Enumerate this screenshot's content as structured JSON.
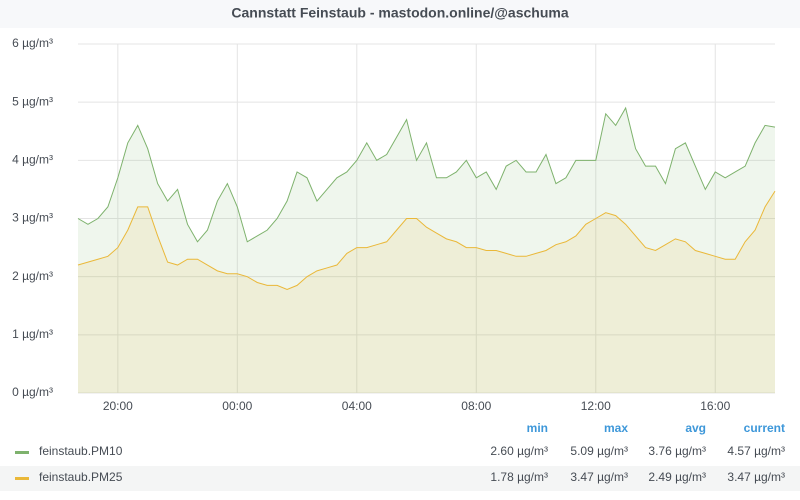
{
  "chart_data": {
    "type": "line",
    "title": "Cannstatt Feinstaub - mastodon.online/@aschuma",
    "categories": [
      null,
      null,
      null,
      null,
      "20:00",
      null,
      null,
      null,
      null,
      null,
      null,
      null,
      null,
      null,
      null,
      null,
      "00:00",
      null,
      null,
      null,
      null,
      null,
      null,
      null,
      null,
      null,
      null,
      null,
      "04:00",
      null,
      null,
      null,
      null,
      null,
      null,
      null,
      null,
      null,
      null,
      null,
      "08:00",
      null,
      null,
      null,
      null,
      null,
      null,
      null,
      null,
      null,
      null,
      null,
      "12:00",
      null,
      null,
      null,
      null,
      null,
      null,
      null,
      null,
      null,
      null,
      null,
      "16:00",
      null,
      null,
      null,
      null,
      null,
      null
    ],
    "series": [
      {
        "name": "feinstaub.PM10",
        "color": "#7eb26d",
        "values": [
          3.0,
          2.9,
          3.0,
          3.2,
          3.7,
          4.3,
          4.6,
          4.2,
          3.6,
          3.3,
          3.5,
          2.9,
          2.6,
          2.8,
          3.3,
          3.6,
          3.2,
          2.6,
          2.7,
          2.8,
          3.0,
          3.3,
          3.8,
          3.7,
          3.3,
          3.5,
          3.7,
          3.8,
          4.0,
          4.3,
          4.0,
          4.1,
          4.4,
          4.7,
          4.0,
          4.3,
          3.7,
          3.7,
          3.8,
          4.0,
          3.7,
          3.8,
          3.5,
          3.9,
          4.0,
          3.8,
          3.8,
          4.1,
          3.6,
          3.7,
          4.0,
          4.0,
          4.0,
          4.8,
          4.6,
          4.9,
          4.2,
          3.9,
          3.9,
          3.6,
          4.2,
          4.3,
          3.9,
          3.5,
          3.8,
          3.7,
          3.8,
          3.9,
          4.3,
          4.6,
          4.57
        ]
      },
      {
        "name": "feinstaub.PM25",
        "color": "#eab839",
        "values": [
          2.2,
          2.25,
          2.3,
          2.35,
          2.5,
          2.8,
          3.2,
          3.2,
          2.7,
          2.25,
          2.2,
          2.3,
          2.3,
          2.2,
          2.1,
          2.05,
          2.05,
          2.0,
          1.9,
          1.85,
          1.85,
          1.78,
          1.85,
          2.0,
          2.1,
          2.15,
          2.2,
          2.4,
          2.5,
          2.5,
          2.55,
          2.6,
          2.8,
          3.0,
          3.0,
          2.85,
          2.75,
          2.65,
          2.6,
          2.5,
          2.5,
          2.45,
          2.45,
          2.4,
          2.35,
          2.35,
          2.4,
          2.45,
          2.55,
          2.6,
          2.7,
          2.9,
          3.0,
          3.1,
          3.05,
          2.9,
          2.7,
          2.5,
          2.45,
          2.55,
          2.65,
          2.6,
          2.45,
          2.4,
          2.35,
          2.3,
          2.3,
          2.6,
          2.8,
          3.2,
          3.47
        ]
      }
    ],
    "ylim": [
      0,
      6
    ],
    "yticks": [
      {
        "value": 0,
        "label": "0 µg/m³"
      },
      {
        "value": 1,
        "label": "1 µg/m³"
      },
      {
        "value": 2,
        "label": "2 µg/m³"
      },
      {
        "value": 3,
        "label": "3 µg/m³"
      },
      {
        "value": 4,
        "label": "4 µg/m³"
      },
      {
        "value": 5,
        "label": "5 µg/m³"
      },
      {
        "value": 6,
        "label": "6 µg/m³"
      }
    ],
    "grid": true,
    "legend_table": {
      "columns": [
        "min",
        "max",
        "avg",
        "current"
      ],
      "rows": [
        [
          "2.60 µg/m³",
          "5.09 µg/m³",
          "3.76 µg/m³",
          "4.57 µg/m³"
        ],
        [
          "1.78 µg/m³",
          "3.47 µg/m³",
          "2.49 µg/m³",
          "3.47 µg/m³"
        ]
      ]
    }
  }
}
